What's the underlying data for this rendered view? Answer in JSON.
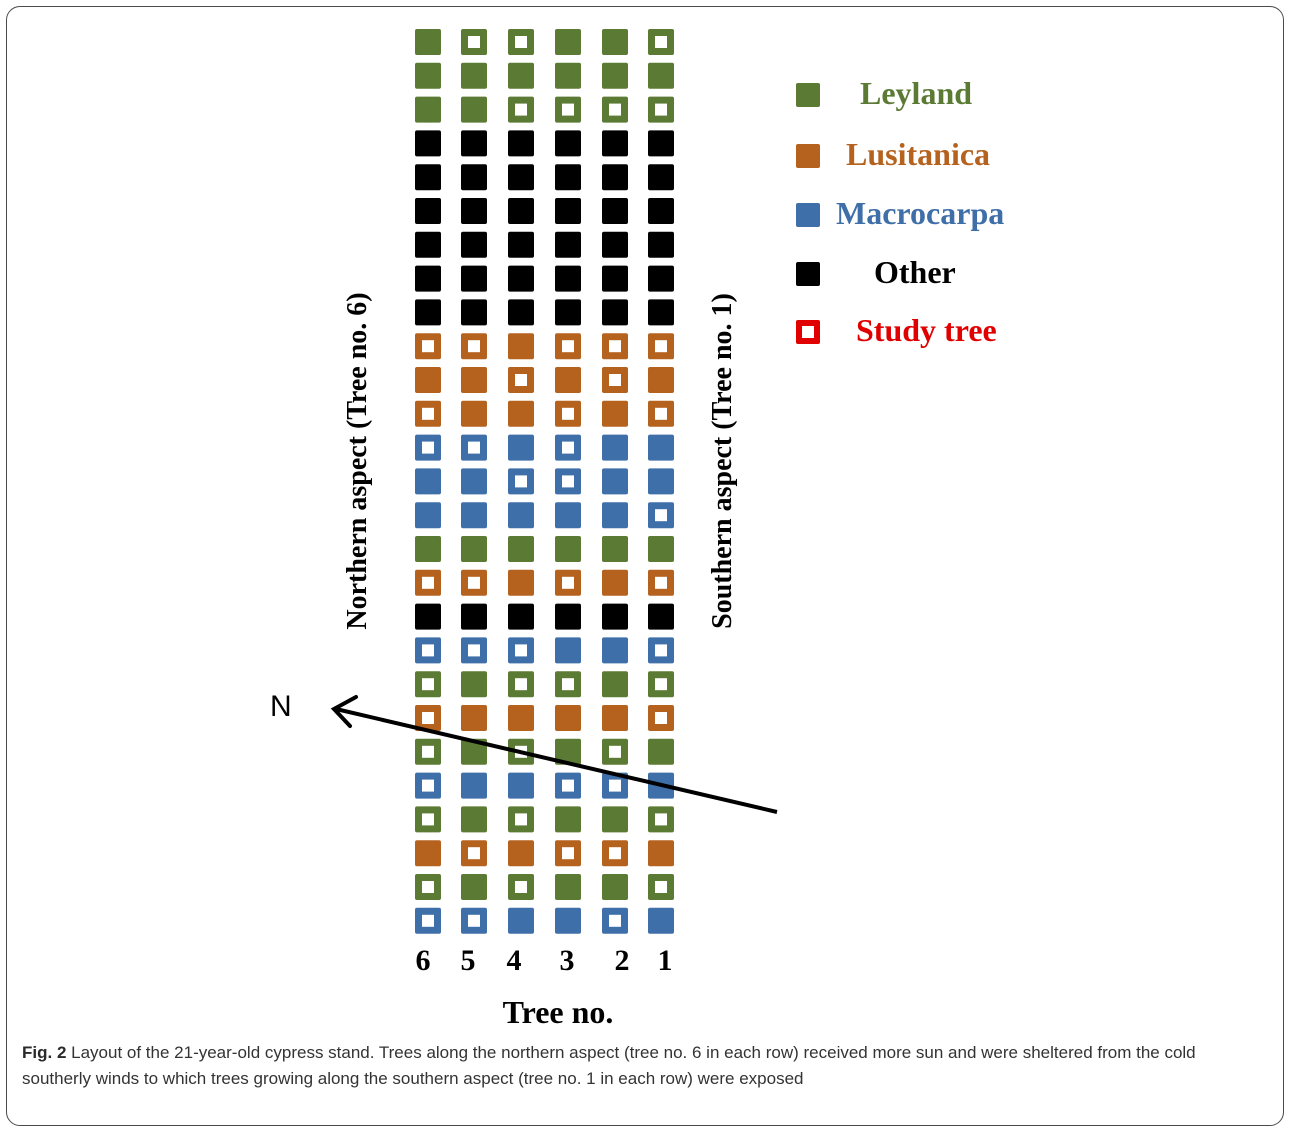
{
  "colors": {
    "leyland": "#5b7a34",
    "lusitanica": "#b5621e",
    "macrocarpa": "#3f6fa8",
    "other": "#000000",
    "study": "#e00000",
    "arrow": "#000000"
  },
  "column_numbers": [
    "6",
    "5",
    "4",
    "3",
    "2",
    "1"
  ],
  "rows": [
    [
      {
        "s": "L",
        "t": 0
      },
      {
        "s": "L",
        "t": 1
      },
      {
        "s": "L",
        "t": 1
      },
      {
        "s": "L",
        "t": 0
      },
      {
        "s": "L",
        "t": 0
      },
      {
        "s": "L",
        "t": 1
      }
    ],
    [
      {
        "s": "L",
        "t": 0
      },
      {
        "s": "L",
        "t": 0
      },
      {
        "s": "L",
        "t": 0
      },
      {
        "s": "L",
        "t": 0
      },
      {
        "s": "L",
        "t": 0
      },
      {
        "s": "L",
        "t": 0
      }
    ],
    [
      {
        "s": "L",
        "t": 0
      },
      {
        "s": "L",
        "t": 0
      },
      {
        "s": "L",
        "t": 1
      },
      {
        "s": "L",
        "t": 1
      },
      {
        "s": "L",
        "t": 1
      },
      {
        "s": "L",
        "t": 1
      }
    ],
    [
      {
        "s": "O",
        "t": 0
      },
      {
        "s": "O",
        "t": 0
      },
      {
        "s": "O",
        "t": 0
      },
      {
        "s": "O",
        "t": 0
      },
      {
        "s": "O",
        "t": 0
      },
      {
        "s": "O",
        "t": 0
      }
    ],
    [
      {
        "s": "O",
        "t": 0
      },
      {
        "s": "O",
        "t": 0
      },
      {
        "s": "O",
        "t": 0
      },
      {
        "s": "O",
        "t": 0
      },
      {
        "s": "O",
        "t": 0
      },
      {
        "s": "O",
        "t": 0
      }
    ],
    [
      {
        "s": "O",
        "t": 0
      },
      {
        "s": "O",
        "t": 0
      },
      {
        "s": "O",
        "t": 0
      },
      {
        "s": "O",
        "t": 0
      },
      {
        "s": "O",
        "t": 0
      },
      {
        "s": "O",
        "t": 0
      }
    ],
    [
      {
        "s": "O",
        "t": 0
      },
      {
        "s": "O",
        "t": 0
      },
      {
        "s": "O",
        "t": 0
      },
      {
        "s": "O",
        "t": 0
      },
      {
        "s": "O",
        "t": 0
      },
      {
        "s": "O",
        "t": 0
      }
    ],
    [
      {
        "s": "O",
        "t": 0
      },
      {
        "s": "O",
        "t": 0
      },
      {
        "s": "O",
        "t": 0
      },
      {
        "s": "O",
        "t": 0
      },
      {
        "s": "O",
        "t": 0
      },
      {
        "s": "O",
        "t": 0
      }
    ],
    [
      {
        "s": "O",
        "t": 0
      },
      {
        "s": "O",
        "t": 0
      },
      {
        "s": "O",
        "t": 0
      },
      {
        "s": "O",
        "t": 0
      },
      {
        "s": "O",
        "t": 0
      },
      {
        "s": "O",
        "t": 0
      }
    ],
    [
      {
        "s": "U",
        "t": 1
      },
      {
        "s": "U",
        "t": 1
      },
      {
        "s": "U",
        "t": 0
      },
      {
        "s": "U",
        "t": 1
      },
      {
        "s": "U",
        "t": 1
      },
      {
        "s": "U",
        "t": 1
      }
    ],
    [
      {
        "s": "U",
        "t": 0
      },
      {
        "s": "U",
        "t": 0
      },
      {
        "s": "U",
        "t": 1
      },
      {
        "s": "U",
        "t": 0
      },
      {
        "s": "U",
        "t": 1
      },
      {
        "s": "U",
        "t": 0
      }
    ],
    [
      {
        "s": "U",
        "t": 1
      },
      {
        "s": "U",
        "t": 0
      },
      {
        "s": "U",
        "t": 0
      },
      {
        "s": "U",
        "t": 1
      },
      {
        "s": "U",
        "t": 0
      },
      {
        "s": "U",
        "t": 1
      }
    ],
    [
      {
        "s": "M",
        "t": 1
      },
      {
        "s": "M",
        "t": 1
      },
      {
        "s": "M",
        "t": 0
      },
      {
        "s": "M",
        "t": 1
      },
      {
        "s": "M",
        "t": 0
      },
      {
        "s": "M",
        "t": 0
      }
    ],
    [
      {
        "s": "M",
        "t": 0
      },
      {
        "s": "M",
        "t": 0
      },
      {
        "s": "M",
        "t": 1
      },
      {
        "s": "M",
        "t": 1
      },
      {
        "s": "M",
        "t": 0
      },
      {
        "s": "M",
        "t": 0
      }
    ],
    [
      {
        "s": "M",
        "t": 0
      },
      {
        "s": "M",
        "t": 0
      },
      {
        "s": "M",
        "t": 0
      },
      {
        "s": "M",
        "t": 0
      },
      {
        "s": "M",
        "t": 0
      },
      {
        "s": "M",
        "t": 1
      }
    ],
    [
      {
        "s": "L",
        "t": 0
      },
      {
        "s": "L",
        "t": 0
      },
      {
        "s": "L",
        "t": 0
      },
      {
        "s": "L",
        "t": 0
      },
      {
        "s": "L",
        "t": 0
      },
      {
        "s": "L",
        "t": 0
      }
    ],
    [
      {
        "s": "U",
        "t": 1
      },
      {
        "s": "U",
        "t": 1
      },
      {
        "s": "U",
        "t": 0
      },
      {
        "s": "U",
        "t": 1
      },
      {
        "s": "U",
        "t": 0
      },
      {
        "s": "U",
        "t": 1
      }
    ],
    [
      {
        "s": "O",
        "t": 0
      },
      {
        "s": "O",
        "t": 0
      },
      {
        "s": "O",
        "t": 0
      },
      {
        "s": "O",
        "t": 0
      },
      {
        "s": "O",
        "t": 0
      },
      {
        "s": "O",
        "t": 0
      }
    ],
    [
      {
        "s": "M",
        "t": 1
      },
      {
        "s": "M",
        "t": 1
      },
      {
        "s": "M",
        "t": 1
      },
      {
        "s": "M",
        "t": 0
      },
      {
        "s": "M",
        "t": 0
      },
      {
        "s": "M",
        "t": 1
      }
    ],
    [
      {
        "s": "L",
        "t": 1
      },
      {
        "s": "L",
        "t": 0
      },
      {
        "s": "L",
        "t": 1
      },
      {
        "s": "L",
        "t": 1
      },
      {
        "s": "L",
        "t": 0
      },
      {
        "s": "L",
        "t": 1
      }
    ],
    [
      {
        "s": "U",
        "t": 1
      },
      {
        "s": "U",
        "t": 0
      },
      {
        "s": "U",
        "t": 0
      },
      {
        "s": "U",
        "t": 0
      },
      {
        "s": "U",
        "t": 0
      },
      {
        "s": "U",
        "t": 1
      }
    ],
    [
      {
        "s": "L",
        "t": 1
      },
      {
        "s": "L",
        "t": 0
      },
      {
        "s": "L",
        "t": 1
      },
      {
        "s": "L",
        "t": 0
      },
      {
        "s": "L",
        "t": 1
      },
      {
        "s": "L",
        "t": 0
      }
    ],
    [
      {
        "s": "M",
        "t": 1
      },
      {
        "s": "M",
        "t": 0
      },
      {
        "s": "M",
        "t": 0
      },
      {
        "s": "M",
        "t": 1
      },
      {
        "s": "M",
        "t": 1
      },
      {
        "s": "M",
        "t": 0
      }
    ],
    [
      {
        "s": "L",
        "t": 1
      },
      {
        "s": "L",
        "t": 0
      },
      {
        "s": "L",
        "t": 1
      },
      {
        "s": "L",
        "t": 0
      },
      {
        "s": "L",
        "t": 0
      },
      {
        "s": "L",
        "t": 1
      }
    ],
    [
      {
        "s": "U",
        "t": 0
      },
      {
        "s": "U",
        "t": 1
      },
      {
        "s": "U",
        "t": 0
      },
      {
        "s": "U",
        "t": 1
      },
      {
        "s": "U",
        "t": 1
      },
      {
        "s": "U",
        "t": 0
      }
    ],
    [
      {
        "s": "L",
        "t": 1
      },
      {
        "s": "L",
        "t": 0
      },
      {
        "s": "L",
        "t": 1
      },
      {
        "s": "L",
        "t": 0
      },
      {
        "s": "L",
        "t": 0
      },
      {
        "s": "L",
        "t": 1
      }
    ],
    [
      {
        "s": "M",
        "t": 1
      },
      {
        "s": "M",
        "t": 1
      },
      {
        "s": "M",
        "t": 0
      },
      {
        "s": "M",
        "t": 0
      },
      {
        "s": "M",
        "t": 1
      },
      {
        "s": "M",
        "t": 0
      }
    ]
  ],
  "legend": [
    {
      "label": "Leyland",
      "kind": "L",
      "color": "#5b7a34"
    },
    {
      "label": "Lusitanica",
      "kind": "U",
      "color": "#b5621e"
    },
    {
      "label": "Macrocarpa",
      "kind": "M",
      "color": "#3f6fa8"
    },
    {
      "label": "Other",
      "kind": "O",
      "color": "#000000"
    },
    {
      "label": "Study tree",
      "kind": "S",
      "color": "#e00000"
    }
  ],
  "labels": {
    "north_aspect": "Northern aspect (Tree no. 6)",
    "south_aspect": "Southern aspect (Tree no. 1)",
    "north_letter": "N",
    "axis_title": "Tree no."
  },
  "caption": {
    "fig_label": "Fig. 2",
    "text": "Layout of the 21-year-old cypress stand. Trees along the northern aspect (tree no. 6 in each row) received more sun and were sheltered from the cold southerly winds to which trees growing along the southern aspect (tree no. 1 in each row) were exposed"
  }
}
